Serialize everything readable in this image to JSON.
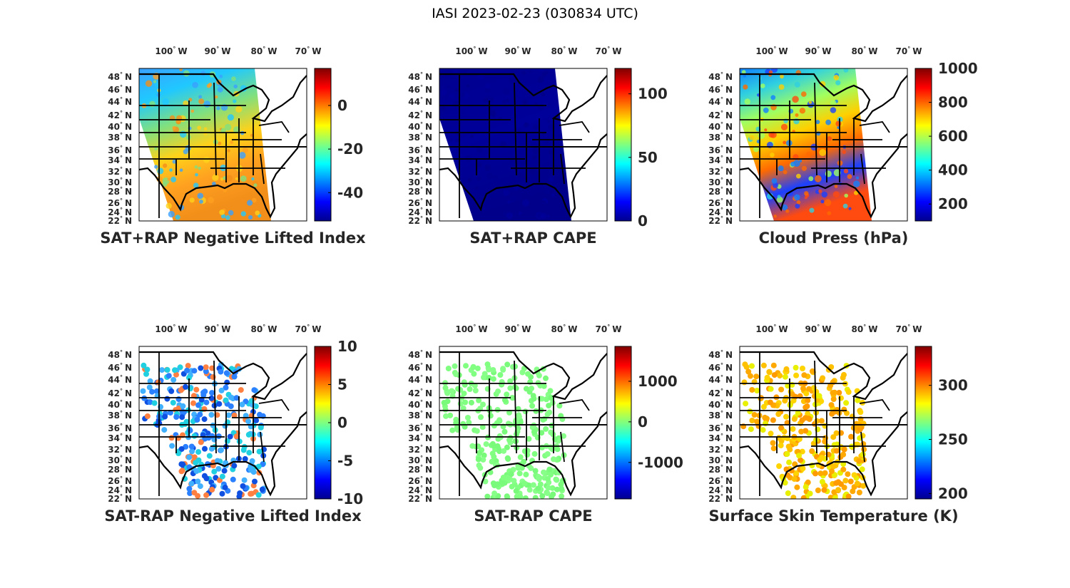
{
  "figure_title": "IASI 2023-02-23 (030834 UTC)",
  "lon_ticks": [
    "100",
    "90",
    "80",
    "70"
  ],
  "lon_suffix": "W",
  "lat_ticks": [
    "48",
    "46",
    "44",
    "42",
    "40",
    "38",
    "36",
    "34",
    "32",
    "30",
    "28",
    "26",
    "24",
    "22"
  ],
  "lat_suffix": "N",
  "degree_symbol": "°",
  "panels": [
    {
      "title": "SAT+RAP Negative Lifted Index",
      "fill": "swath",
      "colors": [
        "#3aa0ff",
        "#20c8ff",
        "#7fe080",
        "#ffd21a",
        "#ffa020",
        "#f28f1a"
      ],
      "colorbar": {
        "min": -53,
        "max": 17,
        "ticks": [
          0,
          -20,
          -40
        ],
        "tick_labels": [
          "0",
          "-20",
          "-40"
        ]
      }
    },
    {
      "title": "SAT+RAP CAPE",
      "fill": "swath",
      "colors": [
        "#00008f",
        "#00009a",
        "#00008a"
      ],
      "colorbar": {
        "min": 0,
        "max": 120,
        "ticks": [
          100,
          50,
          0
        ],
        "tick_labels": [
          "100",
          "50",
          "0"
        ]
      }
    },
    {
      "title": "Cloud Press (hPa)",
      "fill": "swath",
      "colors": [
        "#1080ff",
        "#30d0e0",
        "#a0ff60",
        "#ffd000",
        "#ff6a00",
        "#1a40ff",
        "#ff4a10"
      ],
      "colorbar": {
        "min": 100,
        "max": 1000,
        "ticks": [
          1000,
          800,
          600,
          400,
          200
        ],
        "tick_labels": [
          "1000",
          "800",
          "600",
          "400",
          "200"
        ]
      }
    },
    {
      "title": "SAT-RAP Negative Lifted Index",
      "fill": "dots",
      "colors": [
        "#2a80ff",
        "#40b0ff",
        "#20d0e0",
        "#1050e0",
        "#ff8040"
      ],
      "colorbar": {
        "min": -10,
        "max": 10,
        "ticks": [
          10,
          5,
          0,
          -5,
          -10
        ],
        "tick_labels": [
          "10",
          "5",
          "0",
          "-5",
          "-10"
        ]
      }
    },
    {
      "title": "SAT-RAP CAPE",
      "fill": "dots",
      "colors": [
        "#80ff80",
        "#7afa7a",
        "#88ff88"
      ],
      "colorbar": {
        "min": -1900,
        "max": 1860,
        "ticks": [
          1000,
          0,
          -1000
        ],
        "tick_labels": [
          "1000",
          "0",
          "-1000"
        ]
      }
    },
    {
      "title": "Surface Skin Temperature (K)",
      "fill": "dots",
      "colors": [
        "#ffd400",
        "#ffc000",
        "#ffa800",
        "#e8f000",
        "#ff9a00"
      ],
      "colorbar": {
        "min": 195,
        "max": 336,
        "ticks": [
          300,
          250,
          200
        ],
        "tick_labels": [
          "300",
          "250",
          "200"
        ]
      }
    }
  ]
}
